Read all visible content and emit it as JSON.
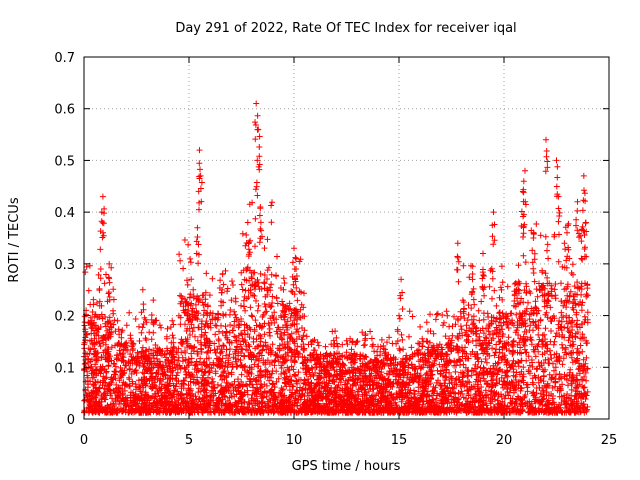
{
  "chart_data": {
    "type": "scatter",
    "title": "Day 291 of 2022, Rate Of TEC Index for receiver iqal",
    "xlabel": "GPS time / hours",
    "ylabel": "ROTI / TECUs",
    "xlim": [
      0,
      25
    ],
    "ylim": [
      0,
      0.7
    ],
    "x_ticks": [
      "0",
      "5",
      "10",
      "15",
      "20",
      "25"
    ],
    "y_ticks": [
      "0",
      "0.1",
      "0.2",
      "0.3",
      "0.4",
      "0.5",
      "0.6",
      "0.7"
    ],
    "grid": true,
    "marker": "+",
    "color": "#ff0000",
    "series": [
      {
        "name": "ROTI",
        "sample_points": [
          {
            "x": 0.1,
            "y": 0.21
          },
          {
            "x": 0.8,
            "y": 0.29
          },
          {
            "x": 0.9,
            "y": 0.43
          },
          {
            "x": 0.85,
            "y": 0.4
          },
          {
            "x": 1.2,
            "y": 0.3
          },
          {
            "x": 1.6,
            "y": 0.19
          },
          {
            "x": 2.8,
            "y": 0.25
          },
          {
            "x": 3.3,
            "y": 0.23
          },
          {
            "x": 4.2,
            "y": 0.19
          },
          {
            "x": 5.2,
            "y": 0.25
          },
          {
            "x": 5.5,
            "y": 0.52
          },
          {
            "x": 5.55,
            "y": 0.47
          },
          {
            "x": 5.4,
            "y": 0.37
          },
          {
            "x": 6.6,
            "y": 0.28
          },
          {
            "x": 7.8,
            "y": 0.38
          },
          {
            "x": 8.2,
            "y": 0.61
          },
          {
            "x": 8.3,
            "y": 0.56
          },
          {
            "x": 8.25,
            "y": 0.5
          },
          {
            "x": 8.4,
            "y": 0.41
          },
          {
            "x": 9.5,
            "y": 0.25
          },
          {
            "x": 10.0,
            "y": 0.33
          },
          {
            "x": 10.1,
            "y": 0.29
          },
          {
            "x": 11.5,
            "y": 0.14
          },
          {
            "x": 12.8,
            "y": 0.15
          },
          {
            "x": 14.0,
            "y": 0.14
          },
          {
            "x": 15.1,
            "y": 0.27
          },
          {
            "x": 15.0,
            "y": 0.2
          },
          {
            "x": 16.5,
            "y": 0.17
          },
          {
            "x": 17.8,
            "y": 0.34
          },
          {
            "x": 18.5,
            "y": 0.27
          },
          {
            "x": 19.0,
            "y": 0.32
          },
          {
            "x": 19.5,
            "y": 0.4
          },
          {
            "x": 20.6,
            "y": 0.25
          },
          {
            "x": 21.0,
            "y": 0.48
          },
          {
            "x": 20.9,
            "y": 0.44
          },
          {
            "x": 21.4,
            "y": 0.35
          },
          {
            "x": 22.0,
            "y": 0.54
          },
          {
            "x": 22.5,
            "y": 0.5
          },
          {
            "x": 22.6,
            "y": 0.43
          },
          {
            "x": 23.0,
            "y": 0.36
          },
          {
            "x": 23.5,
            "y": 0.42
          },
          {
            "x": 23.8,
            "y": 0.47
          },
          {
            "x": 23.9,
            "y": 0.38
          }
        ]
      }
    ]
  }
}
